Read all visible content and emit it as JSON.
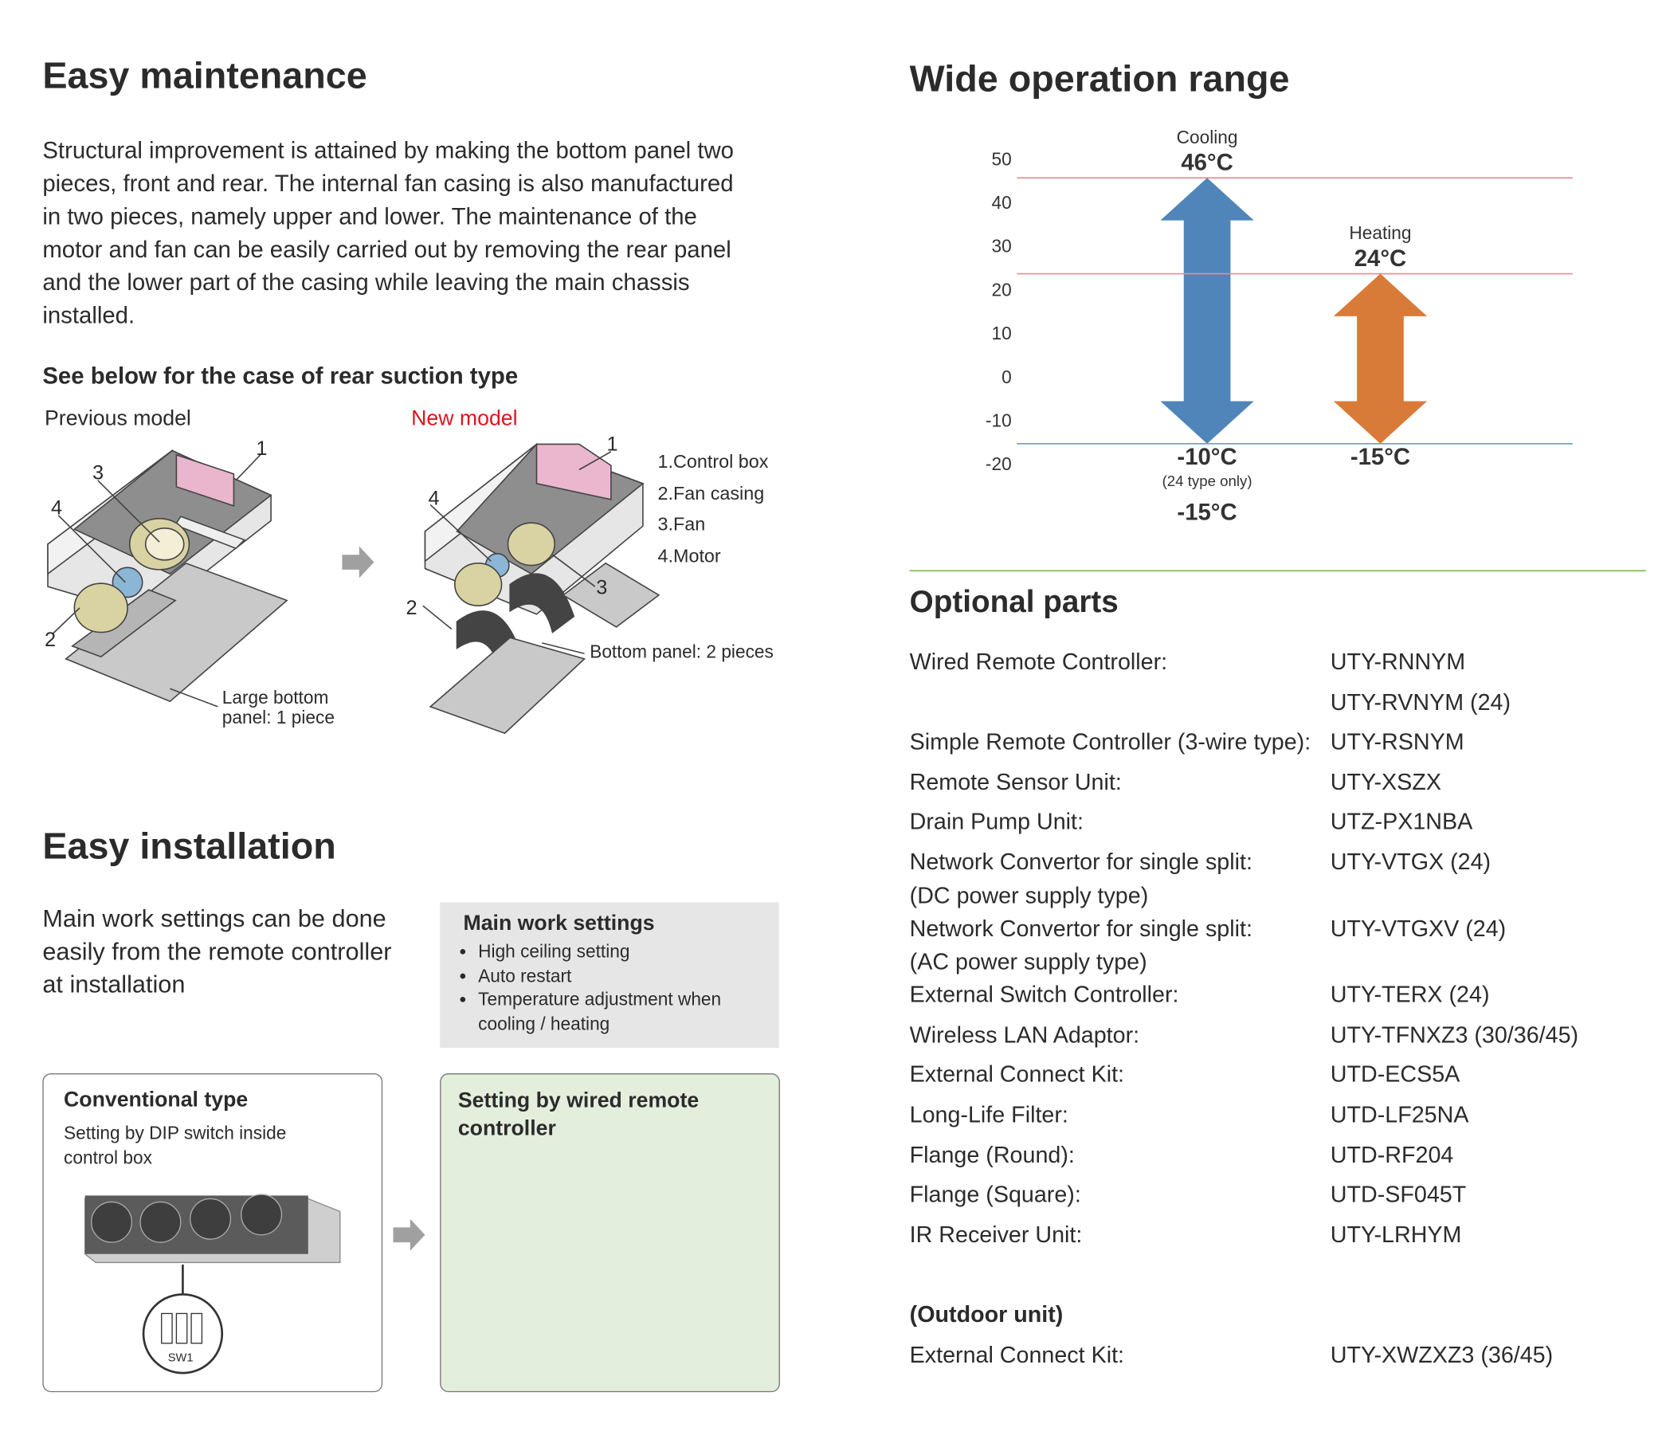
{
  "maintenance": {
    "title": "Easy maintenance",
    "body": "Structural improvement is attained by making the bottom panel two pieces, front and rear. The internal fan casing is also manufactured in two pieces, namely upper and lower. The maintenance of the motor and fan can be easily carried out by removing the rear panel and the lower part of the casing while leaving the main chassis installed.",
    "subtitle": "See below for the case of rear suction type",
    "previous_label": "Previous model",
    "new_label": "New model",
    "previous_callouts": [
      "1",
      "2",
      "3",
      "4"
    ],
    "previous_panel_label": "Large bottom panel: 1 piece",
    "new_callouts": [
      "1",
      "2",
      "3",
      "4"
    ],
    "new_panel_label": "Bottom panel: 2 pieces",
    "legend": [
      "1.Control box",
      "2.Fan casing",
      "3.Fan",
      "4.Motor"
    ]
  },
  "installation": {
    "title": "Easy installation",
    "body": "Main work settings can be done easily from the remote controller at installation",
    "settings_title": "Main work settings",
    "settings": [
      "High ceiling setting",
      "Auto restart",
      "Temperature adjustment when cooling / heating"
    ],
    "conventional_title": "Conventional type",
    "conventional_text": "Setting by DIP switch inside control box",
    "dip_label": "SW1",
    "new_title": "Setting by wired remote controller"
  },
  "operation_range": {
    "title": "Wide operation range",
    "chart": {
      "type": "range-arrow",
      "ylim": [
        -20,
        50
      ],
      "yticks": [
        50,
        40,
        30,
        20,
        10,
        0,
        -10,
        -20
      ],
      "guide_colors": {
        "max": "#e98b97",
        "min": "#5aaade"
      },
      "series": [
        {
          "name": "Cooling",
          "color": "#5085ba",
          "values": [
            -15,
            46
          ],
          "value_labels": [
            "-15°C",
            "46°C"
          ],
          "alt_min": {
            "value": -10,
            "label": "-10°C",
            "note": "(24 type only)"
          }
        },
        {
          "name": "Heating",
          "color": "#d97b38",
          "values": [
            -15,
            24
          ],
          "value_labels": [
            "-15°C",
            "24°C"
          ]
        }
      ]
    }
  },
  "optional_parts": {
    "title": "Optional parts",
    "items": [
      {
        "name": "Wired Remote Controller:",
        "codes": [
          "UTY-RNNYM",
          "UTY-RVNYM (24)"
        ]
      },
      {
        "name": "Simple Remote Controller (3-wire type):",
        "codes": [
          "UTY-RSNYM"
        ]
      },
      {
        "name": "Remote Sensor Unit:",
        "codes": [
          "UTY-XSZX"
        ]
      },
      {
        "name": "Drain Pump Unit:",
        "codes": [
          "UTZ-PX1NBA"
        ]
      },
      {
        "name": "Network Convertor for single split:",
        "note": "(DC power supply type)",
        "codes": [
          "UTY-VTGX (24)"
        ]
      },
      {
        "name": "Network Convertor for single split:",
        "note": "(AC power supply type)",
        "codes": [
          "UTY-VTGXV (24)"
        ]
      },
      {
        "name": "External Switch Controller:",
        "codes": [
          "UTY-TERX (24)"
        ]
      },
      {
        "name": "Wireless LAN Adaptor:",
        "codes": [
          "UTY-TFNXZ3 (30/36/45)"
        ]
      },
      {
        "name": "External Connect Kit:",
        "codes": [
          "UTD-ECS5A"
        ]
      },
      {
        "name": "Long-Life Filter:",
        "codes": [
          "UTD-LF25NA"
        ]
      },
      {
        "name": "Flange (Round):",
        "codes": [
          "UTD-RF204"
        ]
      },
      {
        "name": "Flange (Square):",
        "codes": [
          "UTD-SF045T"
        ]
      },
      {
        "name": "IR Receiver Unit:",
        "codes": [
          "UTY-LRHYM"
        ]
      }
    ],
    "outdoor": {
      "title": "(Outdoor unit)",
      "items": [
        {
          "name": "External Connect Kit:",
          "codes": [
            "UTY-XWZXZ3 (36/45)"
          ]
        }
      ]
    }
  }
}
